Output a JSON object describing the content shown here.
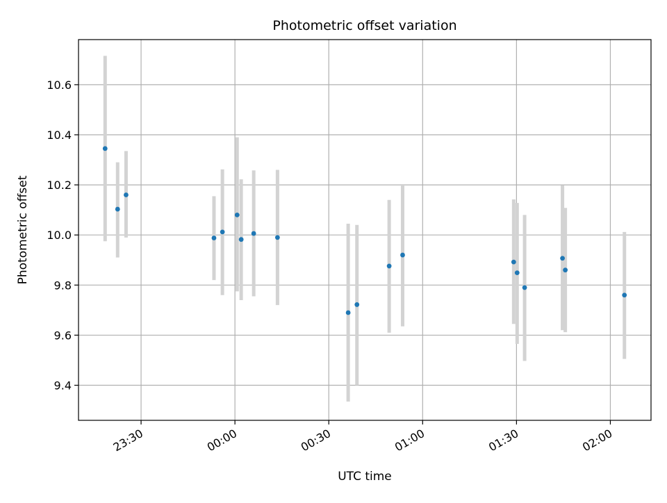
{
  "chart_data": {
    "type": "scatter",
    "title": "Photometric offset variation",
    "xlabel": "UTC time",
    "ylabel": "Photometric offset",
    "x_axis_kind": "time",
    "xlim": [
      "23:10",
      "02:13"
    ],
    "ylim": [
      9.26,
      10.78
    ],
    "x_ticks": [
      "23:30",
      "00:00",
      "00:30",
      "01:00",
      "01:30",
      "02:00"
    ],
    "y_ticks": [
      "9.4",
      "9.6",
      "9.8",
      "10.0",
      "10.2",
      "10.4",
      "10.6"
    ],
    "grid": true,
    "colors": {
      "points": "#1f77b4",
      "errorbars": "#d3d3d3",
      "grid": "#b0b0b0"
    },
    "points": [
      {
        "t": "23:18.5",
        "y": 10.345,
        "lo": 9.975,
        "hi": 10.715
      },
      {
        "t": "23:22.5",
        "y": 10.103,
        "lo": 9.91,
        "hi": 10.29
      },
      {
        "t": "23:25.2",
        "y": 10.16,
        "lo": 9.99,
        "hi": 10.335
      },
      {
        "t": "23:53.3",
        "y": 9.988,
        "lo": 9.82,
        "hi": 10.155
      },
      {
        "t": "23:56.0",
        "y": 10.012,
        "lo": 9.76,
        "hi": 10.262
      },
      {
        "t": "00:00.7",
        "y": 10.08,
        "lo": 9.775,
        "hi": 10.39
      },
      {
        "t": "00:02.0",
        "y": 9.982,
        "lo": 9.74,
        "hi": 10.222
      },
      {
        "t": "00:06.0",
        "y": 10.006,
        "lo": 9.755,
        "hi": 10.258
      },
      {
        "t": "00:13.6",
        "y": 9.99,
        "lo": 9.72,
        "hi": 10.26
      },
      {
        "t": "00:36.2",
        "y": 9.69,
        "lo": 9.335,
        "hi": 10.045
      },
      {
        "t": "00:39.0",
        "y": 9.722,
        "lo": 9.4,
        "hi": 10.04
      },
      {
        "t": "00:49.3",
        "y": 9.876,
        "lo": 9.61,
        "hi": 10.14
      },
      {
        "t": "00:53.6",
        "y": 9.92,
        "lo": 9.635,
        "hi": 10.203
      },
      {
        "t": "01:29.1",
        "y": 9.892,
        "lo": 9.645,
        "hi": 10.142
      },
      {
        "t": "01:30.2",
        "y": 9.849,
        "lo": 9.565,
        "hi": 10.128
      },
      {
        "t": "01:32.6",
        "y": 9.79,
        "lo": 9.497,
        "hi": 10.08
      },
      {
        "t": "01:44.7",
        "y": 9.907,
        "lo": 9.62,
        "hi": 10.198
      },
      {
        "t": "01:45.6",
        "y": 9.86,
        "lo": 9.612,
        "hi": 10.108
      },
      {
        "t": "02:04.5",
        "y": 9.76,
        "lo": 9.505,
        "hi": 10.012
      }
    ]
  }
}
